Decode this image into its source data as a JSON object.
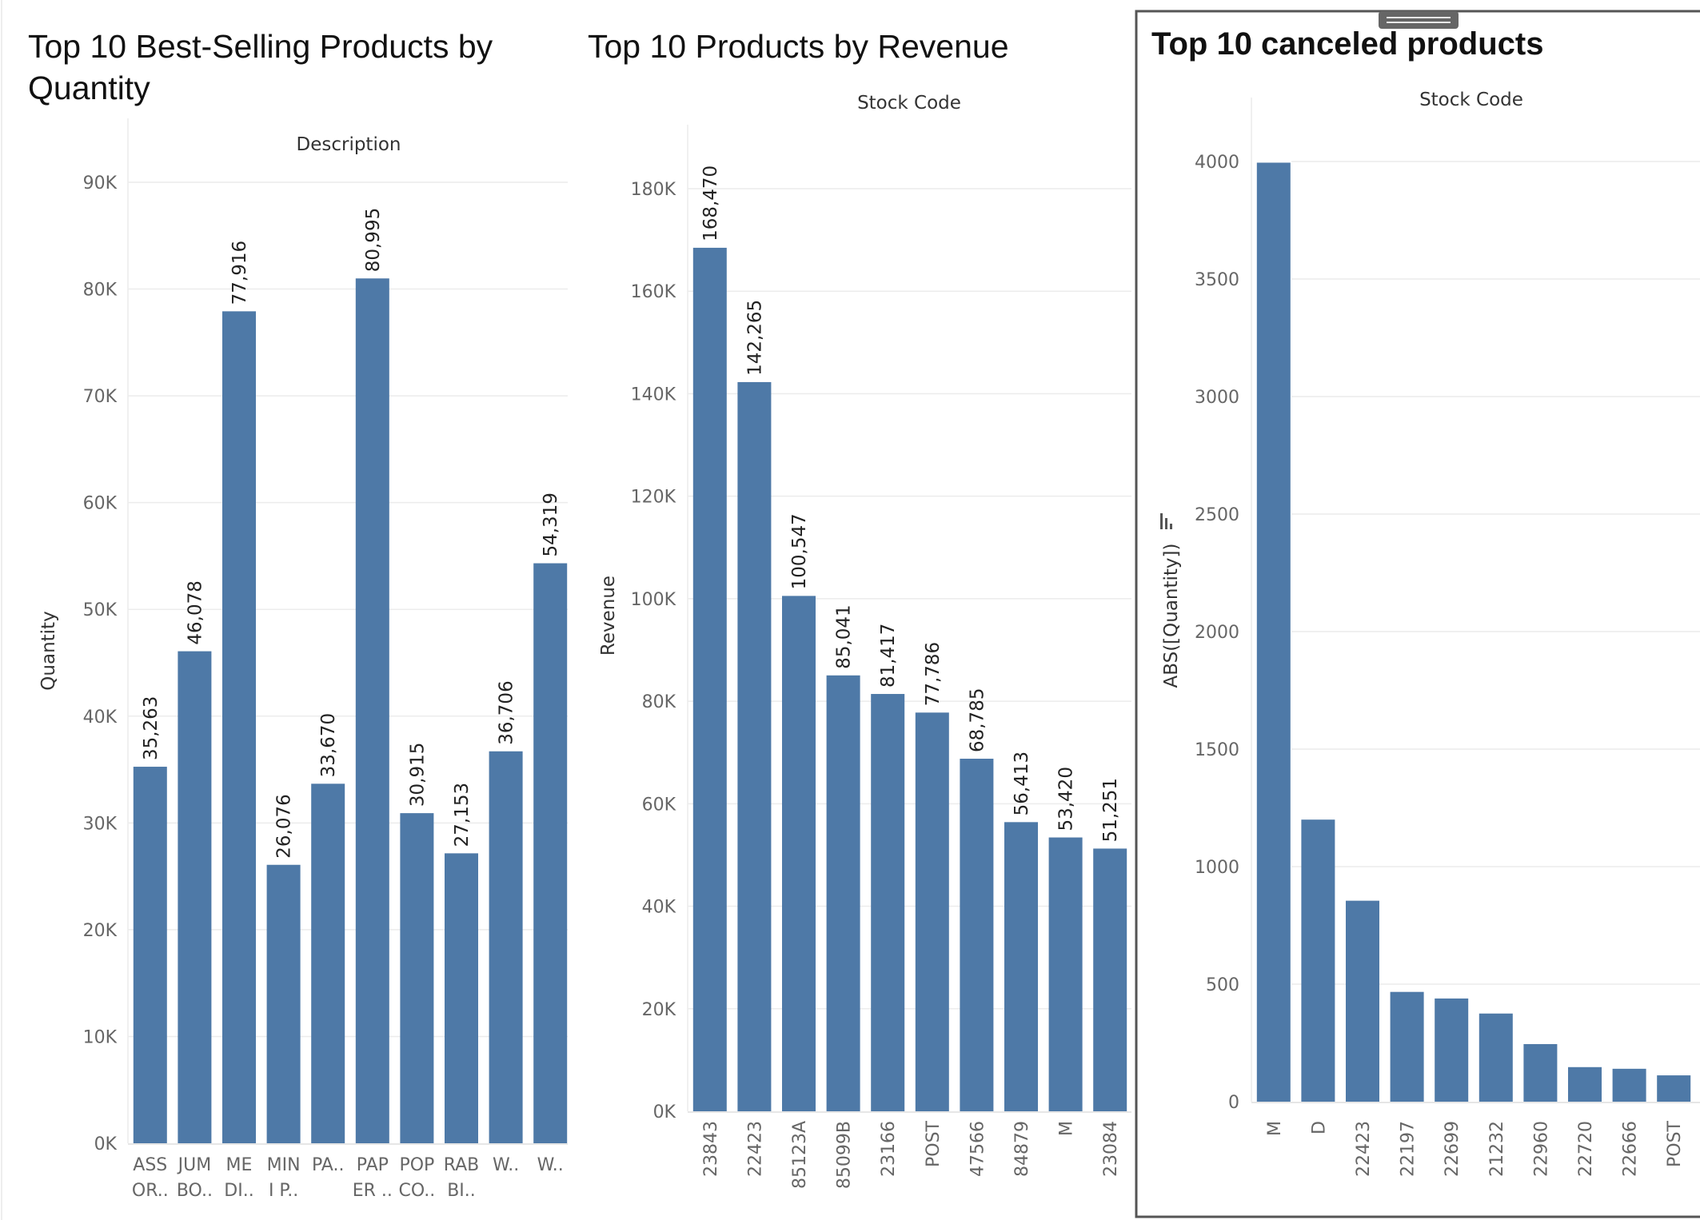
{
  "colors": {
    "bar": "#4e79a7",
    "grid": "#ececec",
    "axis": "#dddddd",
    "panel_border": "#555555"
  },
  "chart_data": [
    {
      "type": "bar",
      "title": "Top 10 Best-Selling Products by Quantity",
      "title_lines": [
        "Top 10 Best-Selling Products by",
        "Quantity"
      ],
      "header": "Description",
      "ylabel": "Quantity",
      "ylim": [
        0,
        90000
      ],
      "yticks": [
        0,
        10000,
        20000,
        30000,
        40000,
        50000,
        60000,
        70000,
        80000,
        90000
      ],
      "ytick_labels": [
        "0K",
        "10K",
        "20K",
        "30K",
        "40K",
        "50K",
        "60K",
        "70K",
        "80K",
        "90K"
      ],
      "categories": [
        [
          "ASS",
          "OR.."
        ],
        [
          "JUM",
          "BO.."
        ],
        [
          "ME",
          "DI.."
        ],
        [
          "MIN",
          "I P.."
        ],
        [
          "PA.."
        ],
        [
          "PAP",
          "ER .."
        ],
        [
          "POP",
          "CO.."
        ],
        [
          "RAB",
          "BI.."
        ],
        [
          "W.."
        ],
        [
          "W.."
        ]
      ],
      "values": [
        35263,
        46078,
        77916,
        26076,
        33670,
        80995,
        30915,
        27153,
        36706,
        54319
      ],
      "data_labels": [
        "35,263",
        "46,078",
        "77,916",
        "26,076",
        "33,670",
        "80,995",
        "30,915",
        "27,153",
        "36,706",
        "54,319"
      ]
    },
    {
      "type": "bar",
      "title": "Top 10 Products by Revenue",
      "title_lines": [
        "Top 10 Products by Revenue"
      ],
      "header": "Stock Code",
      "ylabel": "Revenue",
      "ylim": [
        0,
        180000
      ],
      "yticks": [
        0,
        20000,
        40000,
        60000,
        80000,
        100000,
        120000,
        140000,
        160000,
        180000
      ],
      "ytick_labels": [
        "0K",
        "20K",
        "40K",
        "60K",
        "80K",
        "100K",
        "120K",
        "140K",
        "160K",
        "180K"
      ],
      "categories": [
        "23843",
        "22423",
        "85123A",
        "85099B",
        "23166",
        "POST",
        "47566",
        "84879",
        "M",
        "23084"
      ],
      "values": [
        168470,
        142265,
        100547,
        85041,
        81417,
        77786,
        68785,
        56413,
        53420,
        51251
      ],
      "data_labels": [
        "168,470",
        "142,265",
        "100,547",
        "85,041",
        "81,417",
        "77,786",
        "68,785",
        "56,413",
        "53,420",
        "51,251"
      ]
    },
    {
      "type": "bar",
      "title": "Top 10 canceled products",
      "title_lines": [
        "Top 10 canceled products"
      ],
      "header": "Stock Code",
      "ylabel": "ABS([Quantity])",
      "ylim": [
        0,
        4000
      ],
      "yticks": [
        0,
        500,
        1000,
        1500,
        2000,
        2500,
        3000,
        3500,
        4000
      ],
      "ytick_labels": [
        "0",
        "500",
        "1000",
        "1500",
        "2000",
        "2500",
        "3000",
        "3500",
        "4000"
      ],
      "categories": [
        "M",
        "D",
        "22423",
        "22197",
        "22699",
        "21232",
        "22960",
        "22720",
        "22666",
        "POST"
      ],
      "values": [
        3995,
        1200,
        855,
        467,
        439,
        375,
        245,
        147,
        140,
        112
      ]
    }
  ]
}
